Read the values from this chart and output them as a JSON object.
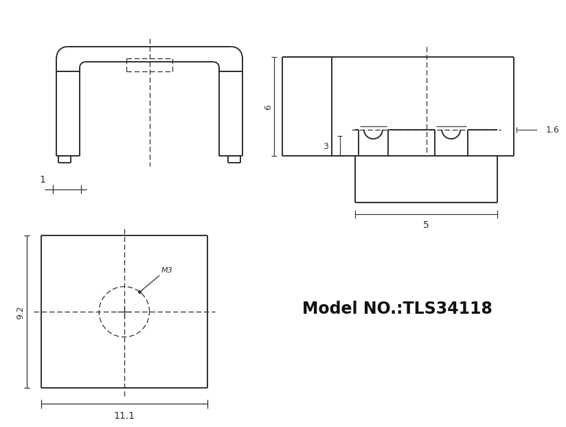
{
  "bg_color": "#ffffff",
  "line_color": "#2d2d2d",
  "model_text": "Model NO.:TLS34118",
  "dim_1": "1",
  "dim_6": "6",
  "dim_3": "3",
  "dim_16": "1.6",
  "dim_5": "5",
  "dim_92": "9.2",
  "dim_111": "11.1",
  "dim_M3": "M3"
}
